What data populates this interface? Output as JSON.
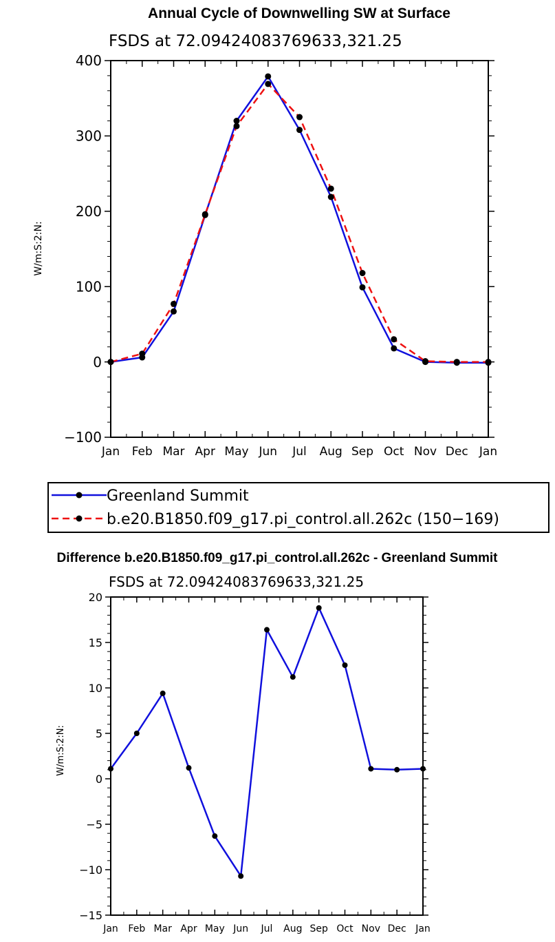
{
  "chart_data": [
    {
      "type": "line",
      "title": "Annual Cycle of Downwelling SW at Surface",
      "subtitle": "FSDS at 72.09424083769633,321.25",
      "xlabel": "",
      "ylabel": "W/m:S:2:N:",
      "categories": [
        "Jan",
        "Feb",
        "Mar",
        "Apr",
        "May",
        "Jun",
        "Jul",
        "Aug",
        "Sep",
        "Oct",
        "Nov",
        "Dec",
        "Jan"
      ],
      "ylim": [
        -100,
        400
      ],
      "yticks": [
        -100,
        0,
        100,
        200,
        300,
        400
      ],
      "ytick_labels": [
        "−100",
        "0",
        "100",
        "200",
        "300",
        "400"
      ],
      "series": [
        {
          "name": "Greenland Summit",
          "color": "#1010dd",
          "dash": "solid",
          "values": [
            0,
            6,
            67,
            195,
            320,
            379,
            308,
            219,
            99,
            18,
            0,
            -1,
            -1
          ]
        },
        {
          "name": "b.e20.B1850.f09_g17.pi_control.all.262c (150−169)",
          "color": "#ee1111",
          "dash": "dashed",
          "values": [
            0,
            11,
            77,
            196,
            313,
            369,
            325,
            230,
            118,
            30,
            1,
            0,
            0
          ]
        }
      ],
      "legend": "below"
    },
    {
      "type": "line",
      "title": "Difference b.e20.B1850.f09_g17.pi_control.all.262c - Greenland Summit",
      "subtitle": "FSDS at 72.09424083769633,321.25",
      "xlabel": "",
      "ylabel": "W/m:S:2:N:",
      "categories": [
        "Jan",
        "Feb",
        "Mar",
        "Apr",
        "May",
        "Jun",
        "Jul",
        "Aug",
        "Sep",
        "Oct",
        "Nov",
        "Dec",
        "Jan"
      ],
      "ylim": [
        -15,
        20
      ],
      "yticks": [
        -15,
        -10,
        -5,
        0,
        5,
        10,
        15,
        20
      ],
      "ytick_labels": [
        "−15",
        "−10",
        "−5",
        "0",
        "5",
        "10",
        "15",
        "20"
      ],
      "series": [
        {
          "name": "Difference",
          "color": "#1010dd",
          "dash": "solid",
          "values": [
            1.1,
            5.0,
            9.4,
            1.2,
            -6.3,
            -10.7,
            16.4,
            11.2,
            18.8,
            12.5,
            1.1,
            1.0,
            1.1
          ]
        }
      ]
    }
  ]
}
